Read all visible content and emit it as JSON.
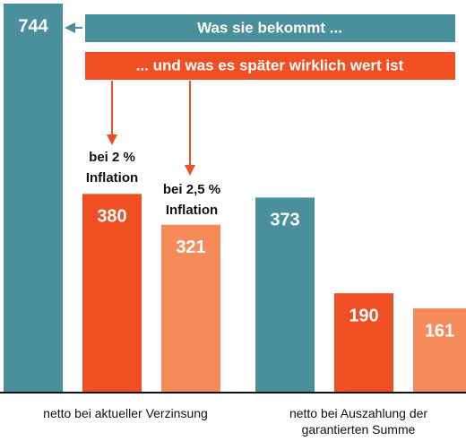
{
  "chart_data": {
    "type": "bar",
    "categories": [
      "netto bei aktueller Verzinsung",
      "netto bei Auszahlung der garantierten Summe"
    ],
    "series": [
      {
        "color": "#4a8f9c",
        "values": [
          744,
          373
        ]
      },
      {
        "color": "#f04e23",
        "values": [
          380,
          190
        ]
      },
      {
        "color": "#f58a5a",
        "values": [
          321,
          161
        ]
      }
    ],
    "ylim": [
      0,
      744
    ],
    "banners": [
      {
        "text": "Was sie bekommt ...",
        "color": "#4a8f9c"
      },
      {
        "text": "... und was es später wirklich wert ist",
        "color": "#f04e23"
      }
    ],
    "annotations": [
      {
        "lines": [
          "bei 2 %",
          "Inflation"
        ]
      },
      {
        "lines": [
          "bei 2,5 %",
          "Inflation"
        ]
      }
    ]
  }
}
